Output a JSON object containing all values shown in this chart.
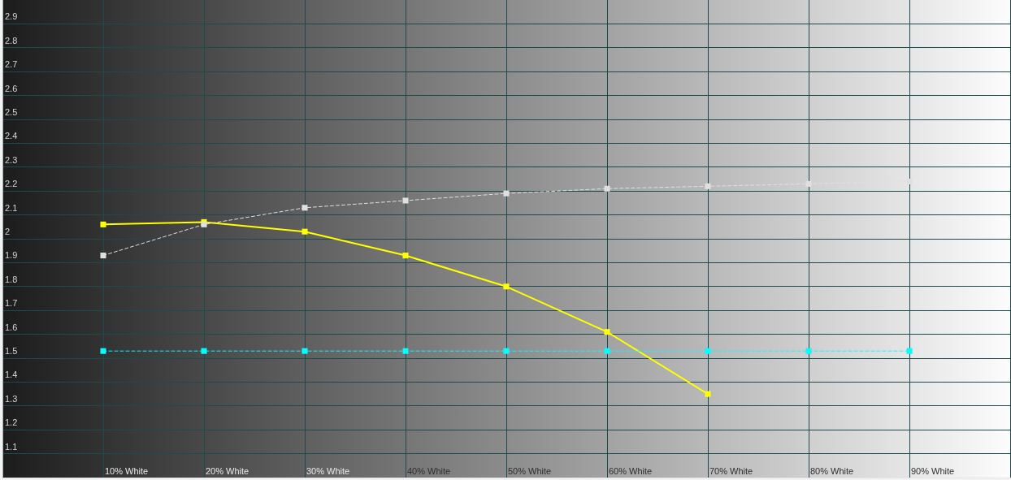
{
  "chart_data": {
    "type": "line",
    "categories": [
      null,
      "10% White",
      "20% White",
      "30% White",
      "40% White",
      "50% White",
      "60% White",
      "70% White",
      "80% White",
      "90% White",
      null
    ],
    "series": [
      {
        "color": "#ffff00",
        "line_style": "solid",
        "values": [
          null,
          2.06,
          2.07,
          2.03,
          1.93,
          1.8,
          1.61,
          1.35,
          null,
          null,
          null
        ]
      },
      {
        "color": "#e0e0e0",
        "line_style": "dashed",
        "values": [
          null,
          1.93,
          2.06,
          2.13,
          2.16,
          2.19,
          2.21,
          2.22,
          2.23,
          2.24,
          null
        ]
      },
      {
        "color": "#00ffff",
        "line_style": "dashed",
        "values": [
          null,
          1.53,
          1.53,
          1.53,
          1.53,
          1.53,
          1.53,
          1.53,
          1.53,
          1.53,
          null
        ]
      }
    ],
    "ylim": [
      1,
      3
    ],
    "yticks": [
      1.1,
      1.2,
      1.3,
      1.4,
      1.5,
      1.6,
      1.7,
      1.8,
      1.9,
      2,
      2.1,
      2.2,
      2.3,
      2.4,
      2.5,
      2.6,
      2.7,
      2.8,
      2.9
    ],
    "grid": true,
    "marker": "square"
  }
}
